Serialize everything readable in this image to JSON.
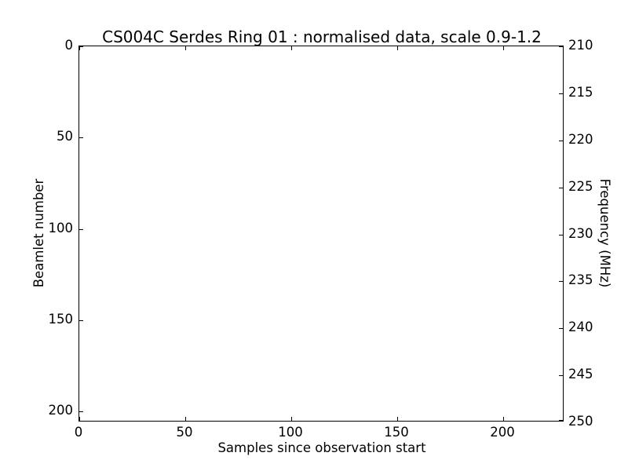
{
  "figure": {
    "title": "CS004C Serdes Ring 01 : normalised data, scale 0.9-1.2"
  },
  "axes": {
    "x": {
      "label": "Samples since observation start",
      "ticks": [
        "0",
        "50",
        "100",
        "150",
        "200"
      ]
    },
    "y_left": {
      "label": "Beamlet number",
      "ticks": [
        "0",
        "50",
        "100",
        "150",
        "200"
      ]
    },
    "y_right": {
      "label": "Frequency (MHz)",
      "ticks": [
        "210",
        "215",
        "220",
        "225",
        "230",
        "235",
        "240",
        "245",
        "250"
      ]
    }
  },
  "colors": {
    "background": "#ffffff",
    "axis_line": "#000000",
    "text": "#000000"
  },
  "chart_data": {
    "type": "heatmap",
    "title": "CS004C Serdes Ring 01 : normalised data, scale 0.9-1.2",
    "xlabel": "Samples since observation start",
    "ylabel_left": "Beamlet number",
    "ylabel_right": "Frequency (MHz)",
    "x_ticks": [
      0,
      50,
      100,
      150,
      200
    ],
    "x_range": [
      0,
      228
    ],
    "y_left_ticks": [
      0,
      50,
      100,
      150,
      200
    ],
    "y_left_range": [
      0,
      206
    ],
    "y_left_inverted": true,
    "y_right_ticks": [
      210,
      215,
      220,
      225,
      230,
      235,
      240,
      245,
      250
    ],
    "y_right_range": [
      210,
      250
    ],
    "color_scale": [
      0.9,
      1.2
    ],
    "values": [],
    "notes": "Plot interior is entirely blank/white; no data pixels, gridlines or legend are rendered. Tick marks point inward on all four spines."
  }
}
